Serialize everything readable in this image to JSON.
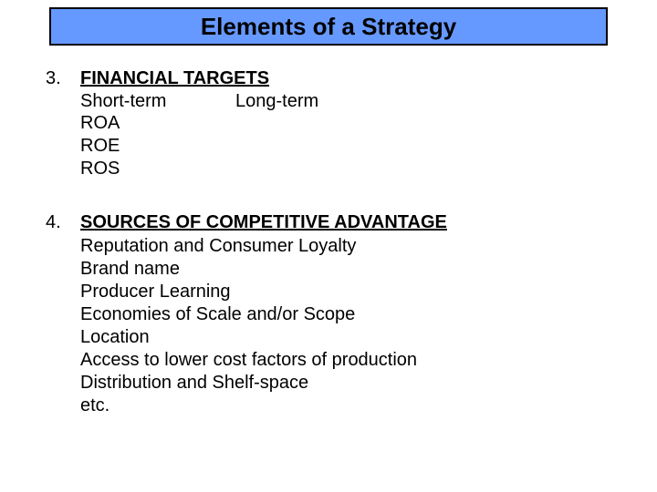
{
  "title": "Elements of a Strategy",
  "colors": {
    "title_bg": "#6699ff",
    "title_border": "#000000",
    "text": "#000000",
    "page_bg": "#ffffff"
  },
  "typography": {
    "title_fontsize": 26,
    "body_fontsize": 20,
    "font_family": "Arial"
  },
  "sections": [
    {
      "number": "3.",
      "heading": "FINANCIAL TARGETS",
      "columns": {
        "left": "Short-term",
        "right": "Long-term"
      },
      "items": [
        "ROA",
        "ROE",
        "ROS"
      ]
    },
    {
      "number": "4.",
      "heading": "SOURCES OF COMPETITIVE ADVANTAGE",
      "items": [
        "Reputation and Consumer Loyalty",
        "Brand name",
        "Producer Learning",
        "Economies of Scale and/or Scope",
        "Location",
        "Access to lower cost factors of production",
        "Distribution and Shelf-space",
        "etc."
      ]
    }
  ]
}
